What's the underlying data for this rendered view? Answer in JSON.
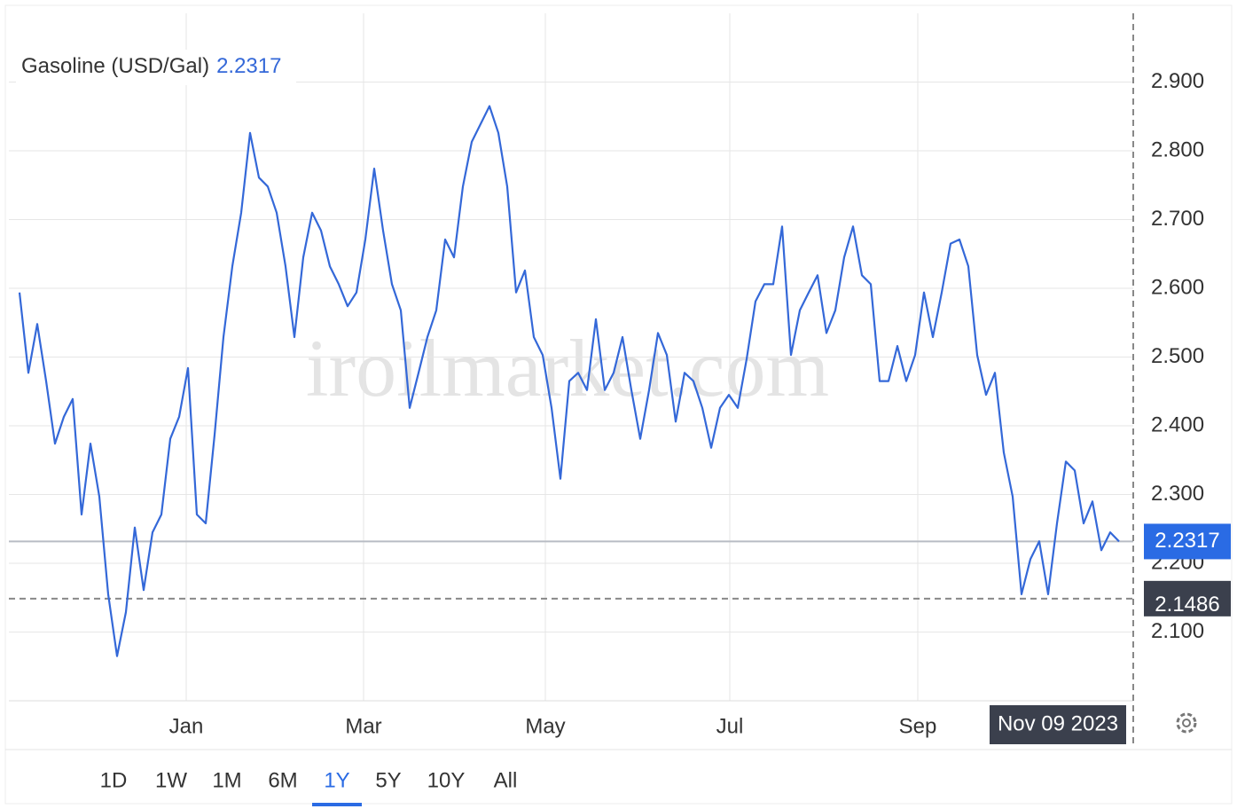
{
  "chart_data": {
    "type": "line",
    "title": "Gasoline (USD/Gal)",
    "current_value": 2.2317,
    "crosshair": {
      "value": 2.1486,
      "date": "Nov 09 2023"
    },
    "watermark": "iroilmarket.com",
    "series": [
      {
        "name": "Gasoline (USD/Gal)",
        "color": "#3468d8",
        "values": [
          2.594,
          2.477,
          2.548,
          2.465,
          2.374,
          2.413,
          2.439,
          2.271,
          2.374,
          2.297,
          2.155,
          2.065,
          2.129,
          2.252,
          2.161,
          2.245,
          2.271,
          2.381,
          2.413,
          2.484,
          2.271,
          2.258,
          2.387,
          2.529,
          2.632,
          2.71,
          2.826,
          2.761,
          2.748,
          2.71,
          2.632,
          2.529,
          2.645,
          2.71,
          2.684,
          2.632,
          2.606,
          2.574,
          2.594,
          2.671,
          2.774,
          2.684,
          2.606,
          2.568,
          2.426,
          2.477,
          2.529,
          2.568,
          2.671,
          2.645,
          2.748,
          2.813,
          2.839,
          2.865,
          2.826,
          2.748,
          2.594,
          2.626,
          2.529,
          2.503,
          2.426,
          2.323,
          2.465,
          2.477,
          2.452,
          2.555,
          2.452,
          2.477,
          2.529,
          2.452,
          2.381,
          2.452,
          2.535,
          2.503,
          2.406,
          2.477,
          2.465,
          2.426,
          2.368,
          2.426,
          2.445,
          2.426,
          2.497,
          2.581,
          2.606,
          2.606,
          2.69,
          2.503,
          2.568,
          2.594,
          2.619,
          2.535,
          2.568,
          2.645,
          2.69,
          2.619,
          2.606,
          2.465,
          2.465,
          2.516,
          2.465,
          2.503,
          2.594,
          2.529,
          2.594,
          2.665,
          2.671,
          2.632,
          2.503,
          2.445,
          2.477,
          2.361,
          2.297,
          2.155,
          2.206,
          2.232,
          2.155,
          2.258,
          2.348,
          2.335,
          2.258,
          2.29,
          2.219,
          2.245,
          2.2317
        ]
      }
    ],
    "xlim": [
      0,
      124
    ],
    "xticks": [
      {
        "value": 18.8,
        "label": "Jan"
      },
      {
        "value": 38.8,
        "label": "Mar"
      },
      {
        "value": 59.3,
        "label": "May"
      },
      {
        "value": 80.1,
        "label": "Jul"
      },
      {
        "value": 101.3,
        "label": "Sep"
      }
    ],
    "ylim": [
      2.0,
      3.0
    ],
    "yticks": [
      {
        "value": 2.1,
        "label": "2.100"
      },
      {
        "value": 2.2,
        "label": "2.200"
      },
      {
        "value": 2.3,
        "label": "2.300"
      },
      {
        "value": 2.4,
        "label": "2.400"
      },
      {
        "value": 2.5,
        "label": "2.500"
      },
      {
        "value": 2.6,
        "label": "2.600"
      },
      {
        "value": 2.7,
        "label": "2.700"
      },
      {
        "value": 2.8,
        "label": "2.800"
      },
      {
        "value": 2.9,
        "label": "2.900"
      }
    ],
    "grid": true,
    "ranges": [
      "1D",
      "1W",
      "1M",
      "6M",
      "1Y",
      "5Y",
      "10Y",
      "All"
    ],
    "selected_range_index": 4
  }
}
